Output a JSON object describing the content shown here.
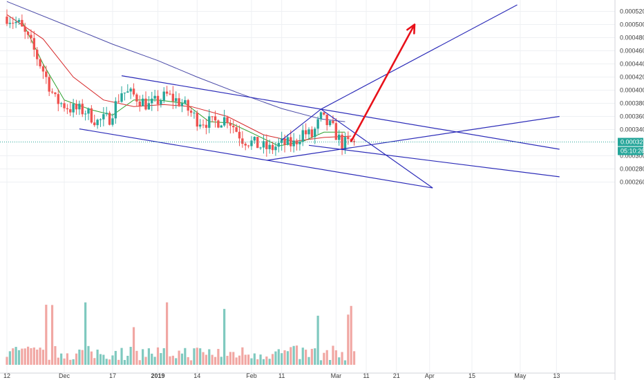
{
  "chart_data": {
    "type": "candlestick",
    "y_ticks": [
      "0.000520",
      "0.000500",
      "0.000480",
      "0.000460",
      "0.000440",
      "0.000420",
      "0.000400",
      "0.000380",
      "0.000360",
      "0.000340",
      "0.000300",
      "0.000280",
      "0.000260"
    ],
    "ylim": [
      0.000248,
      0.000528
    ],
    "x_ticks": [
      {
        "label": "12",
        "date": "2018-11-12",
        "bold": false
      },
      {
        "label": "Dec",
        "date": "2018-12-01",
        "bold": false
      },
      {
        "label": "17",
        "date": "2018-12-17",
        "bold": false
      },
      {
        "label": "2019",
        "date": "2019-01-01",
        "bold": true
      },
      {
        "label": "14",
        "date": "2019-01-14",
        "bold": false
      },
      {
        "label": "Feb",
        "date": "2019-02-01",
        "bold": false
      },
      {
        "label": "11",
        "date": "2019-02-11",
        "bold": false
      },
      {
        "label": "Mar",
        "date": "2019-03-01",
        "bold": false
      },
      {
        "label": "11",
        "date": "2019-03-11",
        "bold": false
      },
      {
        "label": "21",
        "date": "2019-03-21",
        "bold": false
      },
      {
        "label": "Apr",
        "date": "2019-04-01",
        "bold": false
      },
      {
        "label": "15",
        "date": "2019-04-15",
        "bold": false
      },
      {
        "label": "May",
        "date": "2019-05-01",
        "bold": false
      },
      {
        "label": "13",
        "date": "2019-05-13",
        "bold": false
      }
    ],
    "last_price": "0.000321",
    "countdown": "05:10:26",
    "anchors": [
      {
        "date": "2018-11-12",
        "price": 0.000512
      },
      {
        "date": "2018-11-16",
        "price": 0.0005
      },
      {
        "date": "2018-11-20",
        "price": 0.00047
      },
      {
        "date": "2018-11-24",
        "price": 0.00043
      },
      {
        "date": "2018-11-28",
        "price": 0.000385
      },
      {
        "date": "2018-12-03",
        "price": 0.000372
      },
      {
        "date": "2018-12-08",
        "price": 0.000368
      },
      {
        "date": "2018-12-12",
        "price": 0.000352
      },
      {
        "date": "2018-12-16",
        "price": 0.000358
      },
      {
        "date": "2018-12-20",
        "price": 0.000398
      },
      {
        "date": "2018-12-24",
        "price": 0.000392
      },
      {
        "date": "2018-12-29",
        "price": 0.000376
      },
      {
        "date": "2019-01-04",
        "price": 0.000392
      },
      {
        "date": "2019-01-09",
        "price": 0.00038
      },
      {
        "date": "2019-01-14",
        "price": 0.000355
      },
      {
        "date": "2019-01-19",
        "price": 0.00035
      },
      {
        "date": "2019-01-24",
        "price": 0.000358
      },
      {
        "date": "2019-01-29",
        "price": 0.000326
      },
      {
        "date": "2019-02-03",
        "price": 0.000316
      },
      {
        "date": "2019-02-07",
        "price": 0.00031
      },
      {
        "date": "2019-02-11",
        "price": 0.000318
      },
      {
        "date": "2019-02-15",
        "price": 0.000318
      },
      {
        "date": "2019-02-18",
        "price": 0.000336
      },
      {
        "date": "2019-02-21",
        "price": 0.00033
      },
      {
        "date": "2019-02-24",
        "price": 0.000358
      },
      {
        "date": "2019-02-28",
        "price": 0.00034
      },
      {
        "date": "2019-03-03",
        "price": 0.000318
      },
      {
        "date": "2019-03-07",
        "price": 0.000321
      }
    ],
    "series": [
      {
        "kind": "ma",
        "color": "#2ca02c",
        "points": [
          {
            "date": "2018-11-17",
            "price": 0.000505
          },
          {
            "date": "2018-11-24",
            "price": 0.00044
          },
          {
            "date": "2018-12-01",
            "price": 0.000385
          },
          {
            "date": "2018-12-10",
            "price": 0.00037
          },
          {
            "date": "2018-12-17",
            "price": 0.000362
          },
          {
            "date": "2018-12-24",
            "price": 0.000385
          },
          {
            "date": "2019-01-01",
            "price": 0.000385
          },
          {
            "date": "2019-01-10",
            "price": 0.00038
          },
          {
            "date": "2019-01-18",
            "price": 0.000352
          },
          {
            "date": "2019-01-25",
            "price": 0.00035
          },
          {
            "date": "2019-02-01",
            "price": 0.000335
          },
          {
            "date": "2019-02-10",
            "price": 0.000315
          },
          {
            "date": "2019-02-18",
            "price": 0.000322
          },
          {
            "date": "2019-02-25",
            "price": 0.000336
          },
          {
            "date": "2019-03-04",
            "price": 0.000336
          }
        ]
      },
      {
        "kind": "ma",
        "color": "#d62728",
        "points": [
          {
            "date": "2018-11-12",
            "price": 0.000515
          },
          {
            "date": "2018-11-24",
            "price": 0.000478
          },
          {
            "date": "2018-12-04",
            "price": 0.00042
          },
          {
            "date": "2018-12-14",
            "price": 0.000385
          },
          {
            "date": "2018-12-24",
            "price": 0.000375
          },
          {
            "date": "2019-01-03",
            "price": 0.000378
          },
          {
            "date": "2019-01-12",
            "price": 0.000375
          },
          {
            "date": "2019-01-24",
            "price": 0.00036
          },
          {
            "date": "2019-02-05",
            "price": 0.000332
          },
          {
            "date": "2019-02-15",
            "price": 0.000322
          },
          {
            "date": "2019-02-25",
            "price": 0.000328
          },
          {
            "date": "2019-03-06",
            "price": 0.00033
          }
        ]
      },
      {
        "kind": "ma",
        "color": "#4a4aa8",
        "points": [
          {
            "date": "2018-11-12",
            "price": 0.000535
          },
          {
            "date": "2018-12-01",
            "price": 0.0005
          },
          {
            "date": "2018-12-17",
            "price": 0.00047
          },
          {
            "date": "2019-01-01",
            "price": 0.000445
          },
          {
            "date": "2019-01-14",
            "price": 0.00042
          },
          {
            "date": "2019-01-28",
            "price": 0.000395
          },
          {
            "date": "2019-02-11",
            "price": 0.000372
          },
          {
            "date": "2019-02-24",
            "price": 0.000356
          },
          {
            "date": "2019-03-04",
            "price": 0.000352
          }
        ]
      }
    ],
    "trendlines": [
      {
        "name": "channel-top",
        "color": "#2b2bb8",
        "from": {
          "date": "2018-12-20",
          "price": 0.000422
        },
        "to": {
          "date": "2019-05-14",
          "price": 0.00031
        }
      },
      {
        "name": "channel-bottom",
        "color": "#2b2bb8",
        "from": {
          "date": "2018-12-06",
          "price": 0.000341
        },
        "to": {
          "date": "2019-04-02",
          "price": 0.000251
        }
      },
      {
        "name": "support-flat",
        "color": "#2b2bb8",
        "from": {
          "date": "2019-02-20",
          "price": 0.000316
        },
        "to": {
          "date": "2019-05-14",
          "price": 0.000268
        }
      },
      {
        "name": "rising-support",
        "color": "#2b2bb8",
        "from": {
          "date": "2019-02-06",
          "price": 0.000293
        },
        "to": {
          "date": "2019-05-14",
          "price": 0.00036
        }
      },
      {
        "name": "wedge-left",
        "color": "#2b2bb8",
        "from": {
          "date": "2019-02-11",
          "price": 0.000324
        },
        "to": {
          "date": "2019-02-24",
          "price": 0.000371
        }
      },
      {
        "name": "wedge-right",
        "color": "#2b2bb8",
        "from": {
          "date": "2019-02-24",
          "price": 0.000371
        },
        "to": {
          "date": "2019-04-02",
          "price": 0.000251
        }
      },
      {
        "name": "projection",
        "color": "#2b2bb8",
        "from": {
          "date": "2019-02-24",
          "price": 0.000371
        },
        "to": {
          "date": "2019-04-30",
          "price": 0.00053
        }
      }
    ],
    "target_arrow": {
      "color": "#e8111a",
      "from": {
        "date": "2019-03-06",
        "price": 0.000322
      },
      "to": {
        "date": "2019-03-27",
        "price": 0.0005
      }
    }
  }
}
